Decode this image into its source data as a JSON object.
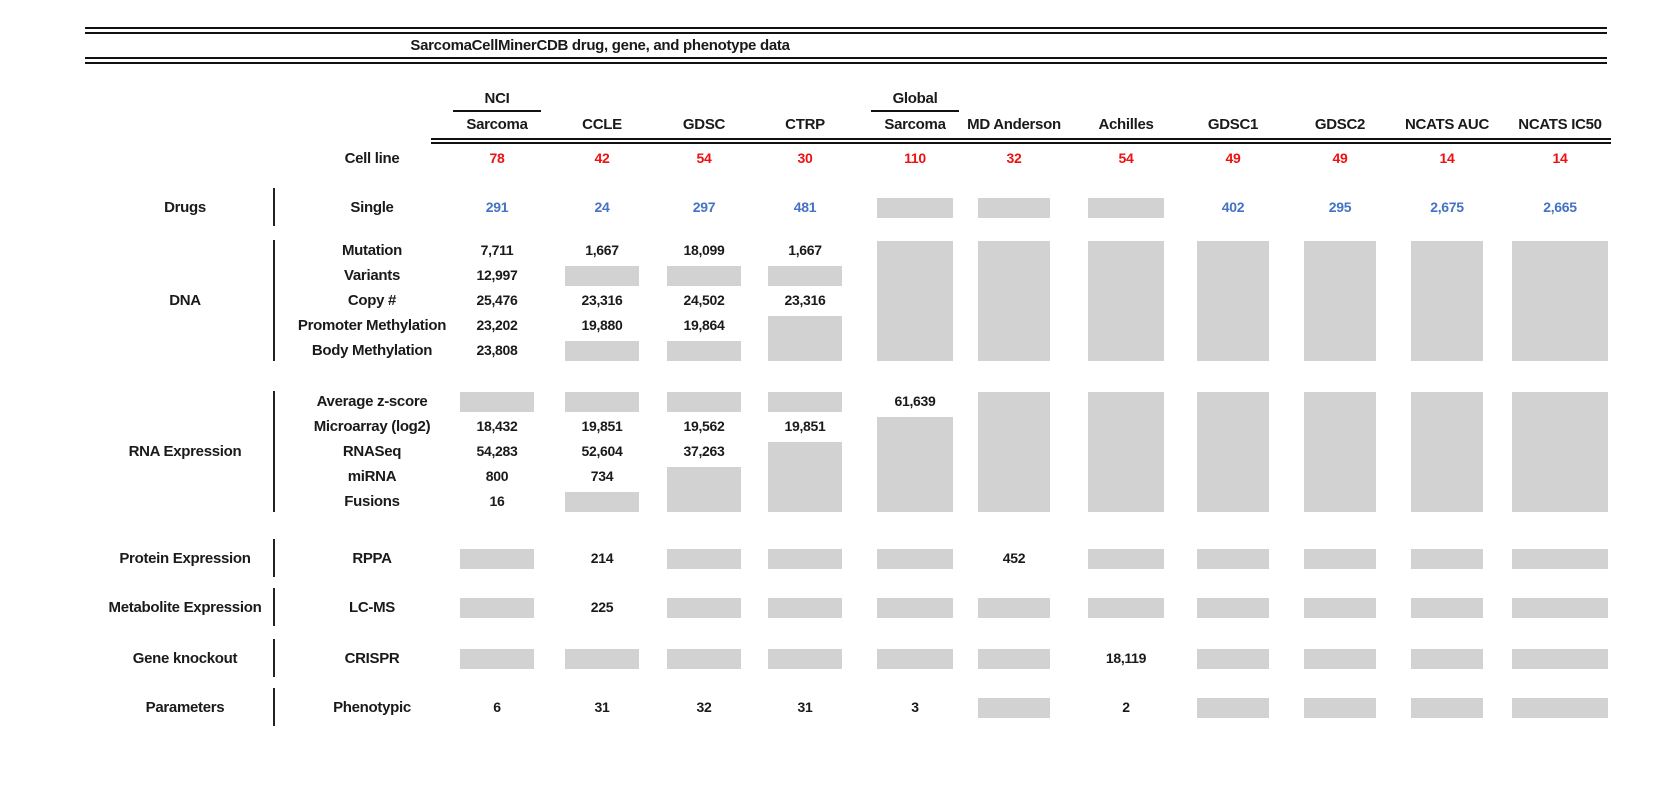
{
  "title": "SarcomaCellMinerCDB drug, gene, and phenotype data",
  "cell_line_row_label": "Cell line",
  "columns": [
    {
      "top": "NCI",
      "label": "Sarcoma",
      "cell_lines": "78"
    },
    {
      "top": null,
      "label": "CCLE",
      "cell_lines": "42"
    },
    {
      "top": null,
      "label": "GDSC",
      "cell_lines": "54"
    },
    {
      "top": null,
      "label": "CTRP",
      "cell_lines": "30"
    },
    {
      "top": "Global",
      "label": "Sarcoma",
      "cell_lines": "110"
    },
    {
      "top": null,
      "label": "MD Anderson",
      "cell_lines": "32"
    },
    {
      "top": null,
      "label": "Achilles",
      "cell_lines": "54"
    },
    {
      "top": null,
      "label": "GDSC1",
      "cell_lines": "49"
    },
    {
      "top": null,
      "label": "GDSC2",
      "cell_lines": "49"
    },
    {
      "top": null,
      "label": "NCATS AUC",
      "cell_lines": "14"
    },
    {
      "top": null,
      "label": "NCATS IC50",
      "cell_lines": "14"
    }
  ],
  "sections": [
    {
      "id": "drugs",
      "label": "Drugs",
      "text_color": "#4472c4",
      "rows": [
        {
          "label": "Single",
          "cells": [
            "291",
            "24",
            "297",
            "481",
            "B",
            "B",
            "B",
            "402",
            "295",
            "2,675",
            "2,665"
          ]
        }
      ]
    },
    {
      "id": "dna",
      "label": "DNA",
      "text_color": "#1a1a1a",
      "rows": [
        {
          "label": "Mutation",
          "cells": [
            "7,711",
            "1,667",
            "18,099",
            "1,667",
            "B5",
            "B5",
            "B5",
            "B5",
            "B5",
            "B5",
            "B5"
          ]
        },
        {
          "label": "Variants",
          "cells": [
            "12,997",
            "B",
            "B",
            "B",
            "",
            "",
            "",
            "",
            "",
            "",
            ""
          ]
        },
        {
          "label": "Copy #",
          "cells": [
            "25,476",
            "23,316",
            "24,502",
            "23,316",
            "",
            "",
            "",
            "",
            "",
            "",
            ""
          ]
        },
        {
          "label": "Promoter Methylation",
          "cells": [
            "23,202",
            "19,880",
            "19,864",
            "B2",
            "",
            "",
            "",
            "",
            "",
            "",
            ""
          ]
        },
        {
          "label": "Body Methylation",
          "cells": [
            "23,808",
            "B",
            "B",
            "",
            "",
            "",
            "",
            "",
            "",
            "",
            ""
          ]
        }
      ]
    },
    {
      "id": "rna",
      "label": "RNA Expression",
      "text_color": "#1a1a1a",
      "rows": [
        {
          "label": "Average z-score",
          "cells": [
            "B",
            "B",
            "B",
            "B",
            "61,639",
            "B5",
            "B5",
            "B5",
            "B5",
            "B5",
            "B5"
          ]
        },
        {
          "label": "Microarray (log2)",
          "cells": [
            "18,432",
            "19,851",
            "19,562",
            "19,851",
            "B4",
            "",
            "",
            "",
            "",
            "",
            ""
          ]
        },
        {
          "label": "RNASeq",
          "cells": [
            "54,283",
            "52,604",
            "37,263",
            "B3",
            "",
            "",
            "",
            "",
            "",
            "",
            ""
          ]
        },
        {
          "label": "miRNA",
          "cells": [
            "800",
            "734",
            "B2",
            "",
            "",
            "",
            "",
            "",
            "",
            "",
            ""
          ]
        },
        {
          "label": "Fusions",
          "cells": [
            "16",
            "B",
            "",
            "",
            "",
            "",
            "",
            "",
            "",
            "",
            ""
          ]
        }
      ]
    },
    {
      "id": "protein",
      "label": "Protein Expression",
      "text_color": "#1a1a1a",
      "rows": [
        {
          "label": "RPPA",
          "cells": [
            "B",
            "214",
            "B",
            "B",
            "B",
            "452",
            "B",
            "B",
            "B",
            "B",
            "B"
          ]
        }
      ]
    },
    {
      "id": "metabolite",
      "label": "Metabolite Expression",
      "text_color": "#1a1a1a",
      "rows": [
        {
          "label": "LC-MS",
          "cells": [
            "B",
            "225",
            "B",
            "B",
            "B",
            "B",
            "B",
            "B",
            "B",
            "B",
            "B"
          ]
        }
      ]
    },
    {
      "id": "knockout",
      "label": "Gene knockout",
      "text_color": "#1a1a1a",
      "rows": [
        {
          "label": "CRISPR",
          "cells": [
            "B",
            "B",
            "B",
            "B",
            "B",
            "B",
            "18,119",
            "B",
            "B",
            "B",
            "B"
          ]
        }
      ]
    },
    {
      "id": "parameters",
      "label": "Parameters",
      "text_color": "#1a1a1a",
      "rows": [
        {
          "label": "Phenotypic",
          "cells": [
            "6",
            "31",
            "32",
            "31",
            "3",
            "B",
            "2",
            "B",
            "B",
            "B",
            "B"
          ]
        }
      ]
    }
  ],
  "colors": {
    "missing_box": "#d2d2d2",
    "cell_line_red": "#ee1111",
    "drug_blue": "#4472c4",
    "text_black": "#1a1a1a",
    "rule_black": "#111111"
  }
}
